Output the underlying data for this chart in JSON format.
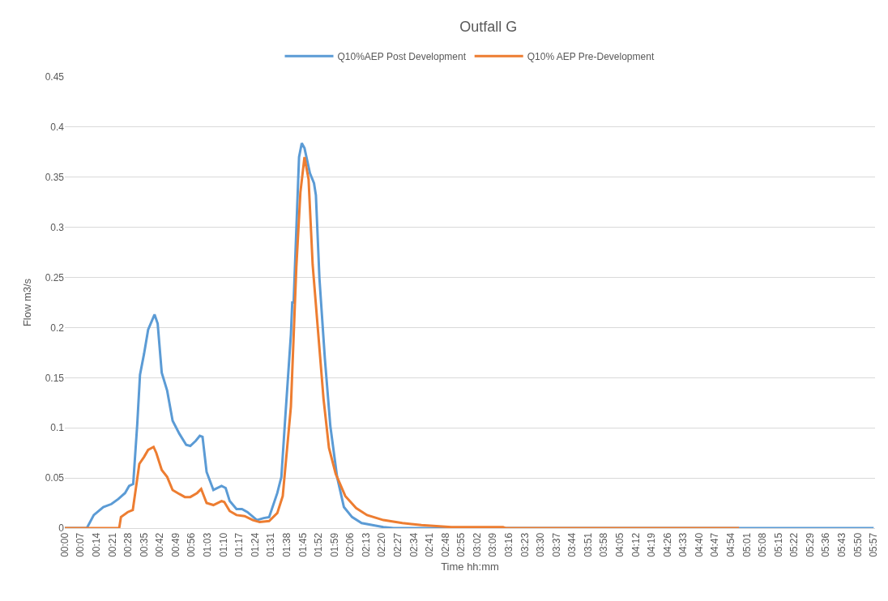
{
  "chart_data": {
    "type": "line",
    "title": "Outfall G",
    "xlabel": "Time hh:mm",
    "ylabel": "Flow m3/s",
    "legend": "top",
    "grid": "y",
    "marker": "none",
    "line_style": "solid",
    "xlim": [
      0,
      5.96
    ],
    "ylim": [
      0,
      0.45
    ],
    "yticks": [
      0,
      0.05,
      0.1,
      0.15,
      0.2,
      0.25,
      0.3,
      0.35,
      0.4,
      0.45
    ],
    "xticks": [
      {
        "value": 0,
        "label": "00:00"
      },
      {
        "value": 0.11667,
        "label": "00:07"
      },
      {
        "value": 0.23333,
        "label": "00:14"
      },
      {
        "value": 0.35,
        "label": "00:21"
      },
      {
        "value": 0.46667,
        "label": "00:28"
      },
      {
        "value": 0.58333,
        "label": "00:35"
      },
      {
        "value": 0.7,
        "label": "00:42"
      },
      {
        "value": 0.81667,
        "label": "00:49"
      },
      {
        "value": 0.93333,
        "label": "00:56"
      },
      {
        "value": 1.05,
        "label": "01:03"
      },
      {
        "value": 1.16667,
        "label": "01:10"
      },
      {
        "value": 1.28333,
        "label": "01:17"
      },
      {
        "value": 1.4,
        "label": "01:24"
      },
      {
        "value": 1.51667,
        "label": "01:31"
      },
      {
        "value": 1.63333,
        "label": "01:38"
      },
      {
        "value": 1.75,
        "label": "01:45"
      },
      {
        "value": 1.86667,
        "label": "01:52"
      },
      {
        "value": 1.98333,
        "label": "01:59"
      },
      {
        "value": 2.1,
        "label": "02:06"
      },
      {
        "value": 2.21667,
        "label": "02:13"
      },
      {
        "value": 2.33333,
        "label": "02:20"
      },
      {
        "value": 2.45,
        "label": "02:27"
      },
      {
        "value": 2.56667,
        "label": "02:34"
      },
      {
        "value": 2.68333,
        "label": "02:41"
      },
      {
        "value": 2.8,
        "label": "02:48"
      },
      {
        "value": 2.91667,
        "label": "02:55"
      },
      {
        "value": 3.03333,
        "label": "03:02"
      },
      {
        "value": 3.15,
        "label": "03:09"
      },
      {
        "value": 3.26667,
        "label": "03:16"
      },
      {
        "value": 3.38333,
        "label": "03:23"
      },
      {
        "value": 3.5,
        "label": "03:30"
      },
      {
        "value": 3.61667,
        "label": "03:37"
      },
      {
        "value": 3.73333,
        "label": "03:44"
      },
      {
        "value": 3.85,
        "label": "03:51"
      },
      {
        "value": 3.96667,
        "label": "03:58"
      },
      {
        "value": 4.08333,
        "label": "04:05"
      },
      {
        "value": 4.2,
        "label": "04:12"
      },
      {
        "value": 4.31667,
        "label": "04:19"
      },
      {
        "value": 4.43333,
        "label": "04:26"
      },
      {
        "value": 4.55,
        "label": "04:33"
      },
      {
        "value": 4.66667,
        "label": "04:40"
      },
      {
        "value": 4.78333,
        "label": "04:47"
      },
      {
        "value": 4.9,
        "label": "04:54"
      },
      {
        "value": 5.01667,
        "label": "05:01"
      },
      {
        "value": 5.13333,
        "label": "05:08"
      },
      {
        "value": 5.25,
        "label": "05:15"
      },
      {
        "value": 5.36667,
        "label": "05:22"
      },
      {
        "value": 5.48333,
        "label": "05:29"
      },
      {
        "value": 5.6,
        "label": "05:36"
      },
      {
        "value": 5.71667,
        "label": "05:43"
      },
      {
        "value": 5.83333,
        "label": "05:50"
      },
      {
        "value": 5.95,
        "label": "05:57"
      }
    ],
    "series": [
      {
        "name": "Q10%AEP Post Development",
        "color": "#5b9bd5",
        "x": [
          0,
          0.162,
          0.213,
          0.283,
          0.343,
          0.393,
          0.443,
          0.473,
          0.503,
          0.533,
          0.553,
          0.583,
          0.613,
          0.66,
          0.683,
          0.713,
          0.753,
          0.793,
          0.843,
          0.893,
          0.923,
          0.963,
          0.993,
          1.013,
          1.043,
          1.093,
          1.153,
          1.183,
          1.213,
          1.263,
          1.303,
          1.343,
          1.413,
          1.463,
          1.503,
          1.563,
          1.593,
          1.623,
          1.663,
          1.673,
          1.683,
          1.723,
          1.743,
          1.763,
          1.803,
          1.833,
          1.847,
          1.873,
          1.913,
          1.953,
          2.003,
          2.053,
          2.113,
          2.183,
          2.263,
          2.343,
          2.417,
          5.95
        ],
        "values": [
          0,
          0,
          0.013,
          0.021,
          0.024,
          0.029,
          0.035,
          0.042,
          0.044,
          0.104,
          0.153,
          0.174,
          0.198,
          0.213,
          0.204,
          0.155,
          0.137,
          0.107,
          0.094,
          0.083,
          0.082,
          0.087,
          0.092,
          0.091,
          0.056,
          0.038,
          0.042,
          0.04,
          0.027,
          0.019,
          0.019,
          0.016,
          0.008,
          0.01,
          0.011,
          0.035,
          0.051,
          0.113,
          0.193,
          0.225,
          0.225,
          0.37,
          0.384,
          0.379,
          0.354,
          0.344,
          0.332,
          0.249,
          0.169,
          0.102,
          0.051,
          0.021,
          0.011,
          0.005,
          0.003,
          0.001,
          0,
          0
        ]
      },
      {
        "name": "Q10% AEP Pre-Development",
        "color": "#ed7d31",
        "x": [
          0,
          0.4,
          0.413,
          0.463,
          0.5,
          0.523,
          0.548,
          0.583,
          0.613,
          0.653,
          0.673,
          0.713,
          0.753,
          0.793,
          0.843,
          0.883,
          0.923,
          0.973,
          1.003,
          1.043,
          1.093,
          1.153,
          1.173,
          1.213,
          1.263,
          1.323,
          1.383,
          1.433,
          1.503,
          1.563,
          1.603,
          1.663,
          1.703,
          1.733,
          1.763,
          1.793,
          1.823,
          1.863,
          1.903,
          1.943,
          1.993,
          2.063,
          2.143,
          2.223,
          2.343,
          2.483,
          2.623,
          2.843,
          3.223,
          3.242,
          4.96
        ],
        "values": [
          0,
          0,
          0.011,
          0.016,
          0.018,
          0.04,
          0.064,
          0.071,
          0.078,
          0.081,
          0.075,
          0.058,
          0.051,
          0.038,
          0.034,
          0.031,
          0.031,
          0.035,
          0.039,
          0.025,
          0.023,
          0.027,
          0.026,
          0.017,
          0.013,
          0.012,
          0.008,
          0.006,
          0.007,
          0.015,
          0.032,
          0.121,
          0.26,
          0.335,
          0.37,
          0.348,
          0.263,
          0.196,
          0.129,
          0.08,
          0.054,
          0.032,
          0.02,
          0.013,
          0.008,
          0.005,
          0.003,
          0.001,
          0.001,
          0,
          0
        ]
      }
    ]
  }
}
